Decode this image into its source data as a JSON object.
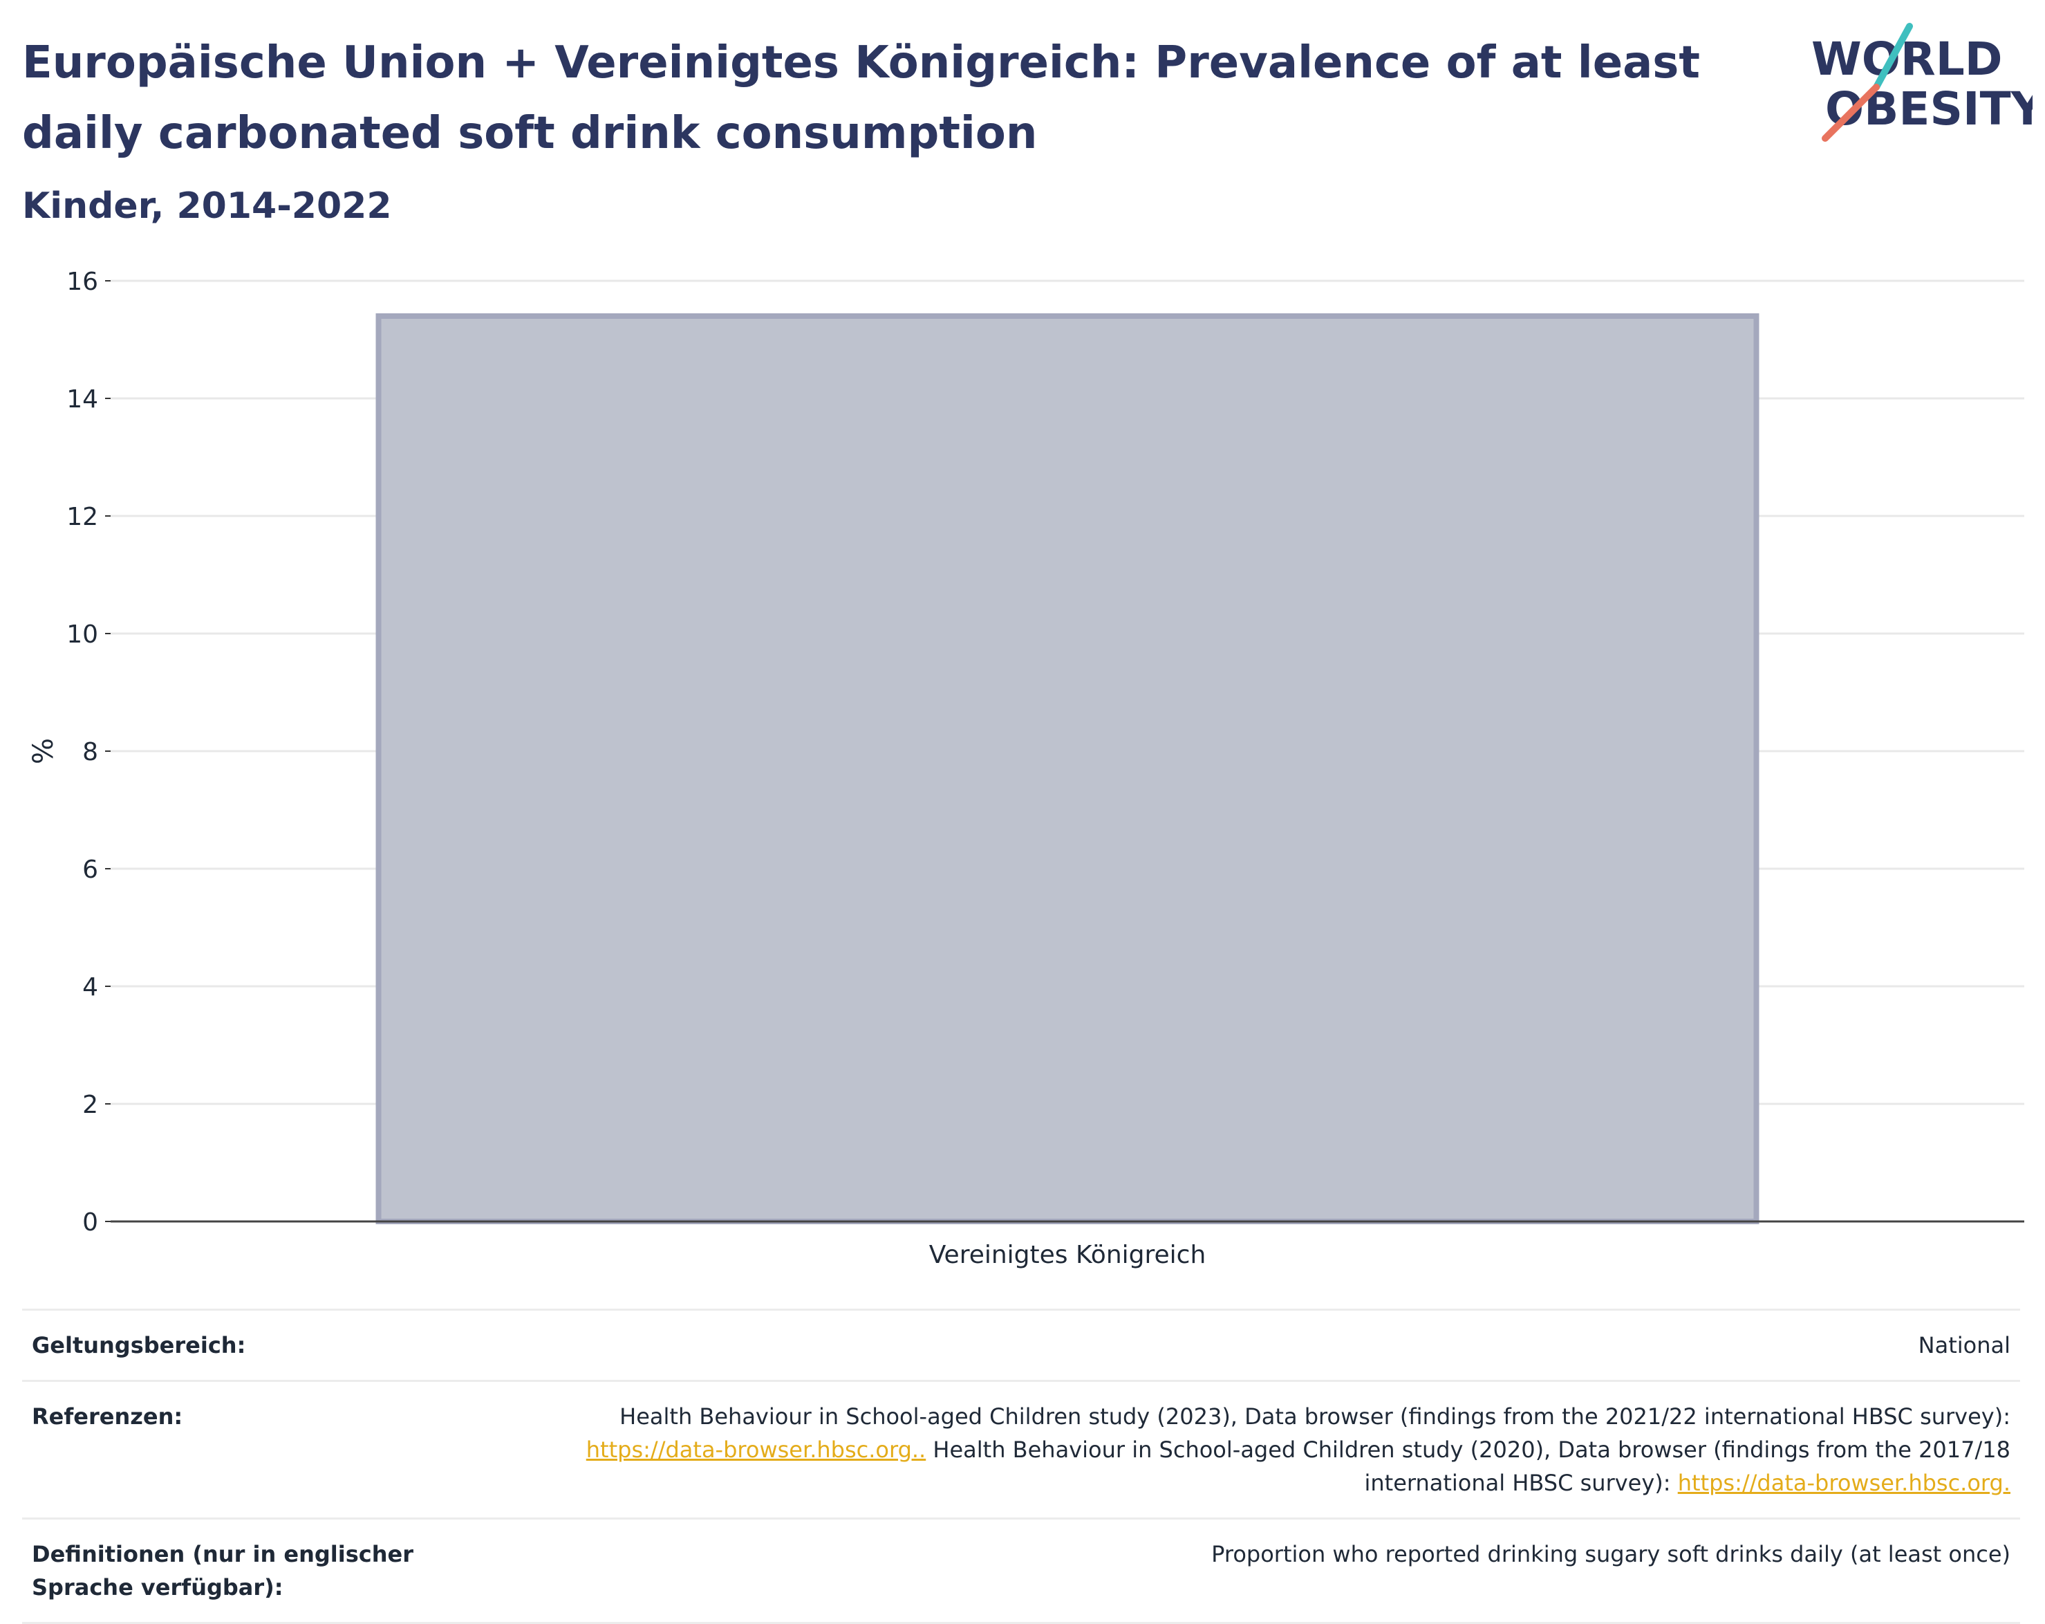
{
  "header": {
    "title": "Europäische Union + Vereinigtes Königreich: Prevalence of at least daily carbonated soft drink consumption",
    "subtitle": "Kinder, 2014-2022"
  },
  "logo": {
    "line1": "WORLD",
    "line2": "OBESITY",
    "colors": {
      "text": "#2c3660",
      "teal": "#3fbfbf",
      "coral": "#e8735e"
    }
  },
  "chart_data": {
    "type": "bar",
    "categories": [
      "Vereinigtes Königreich"
    ],
    "values": [
      15.4
    ],
    "ylabel": "%",
    "ylim": [
      0,
      16
    ],
    "yticks": [
      0,
      2,
      4,
      6,
      8,
      10,
      12,
      14,
      16
    ],
    "grid": true,
    "bar_color": "#bec2ce",
    "bar_edge_color": "#a4a8bd"
  },
  "info": {
    "scope_label": "Geltungsbereich:",
    "scope_value": "National",
    "refs_label": "Referenzen:",
    "refs_text_1": "Health Behaviour in School-aged Children study (2023), Data browser (findings from the 2021/22 international HBSC survey):",
    "refs_link_1": "https://data-browser.hbsc.org..",
    "refs_text_2": " Health Behaviour in School-aged Children study (2020), Data browser (findings from the 2017/18 international HBSC survey): ",
    "refs_link_2": "https://data-browser.hbsc.org.",
    "defs_label": "Definitionen (nur in englischer Sprache verfügbar):",
    "defs_value": "Proportion who reported drinking sugary soft drinks daily (at least once)"
  }
}
